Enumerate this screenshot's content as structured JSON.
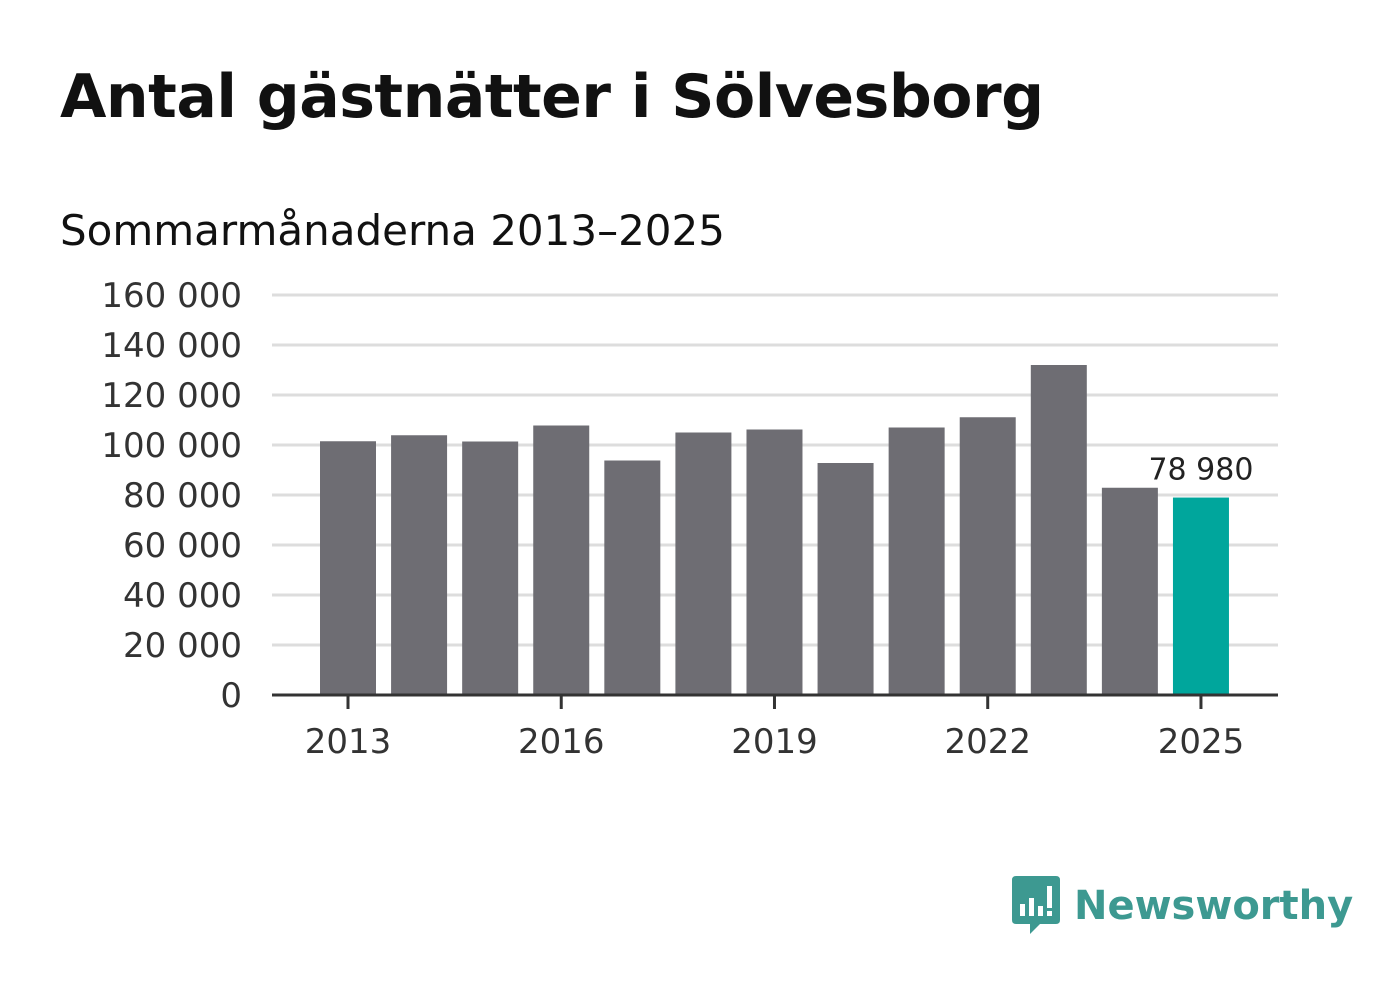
{
  "title": "Antal gästnätter i Sölvesborg",
  "subtitle": "Sommarmånaderna 2013–2025",
  "brand": {
    "name": "Newsworthy",
    "color": "#3d9991",
    "icon": "newsworthy-logo-icon"
  },
  "colors": {
    "bar": "#6e6d73",
    "highlight": "#00a69c",
    "grid": "#dddddd",
    "axis": "#333333"
  },
  "chart_data": {
    "type": "bar",
    "categories": [
      "2013",
      "2014",
      "2015",
      "2016",
      "2017",
      "2018",
      "2019",
      "2020",
      "2021",
      "2022",
      "2023",
      "2024",
      "2025"
    ],
    "values": [
      101500,
      103900,
      101400,
      107800,
      93800,
      105000,
      106200,
      92800,
      107000,
      111100,
      132000,
      82900,
      78980
    ],
    "highlight_index": 12,
    "data_labels": [
      {
        "index": 12,
        "text": "78 980"
      }
    ],
    "x_tick_labels": [
      "2013",
      "2016",
      "2019",
      "2022",
      "2025"
    ],
    "y_ticks": [
      {
        "value": 0,
        "label": "0"
      },
      {
        "value": 20000,
        "label": "20 000"
      },
      {
        "value": 40000,
        "label": "40 000"
      },
      {
        "value": 60000,
        "label": "60 000"
      },
      {
        "value": 80000,
        "label": "80 000"
      },
      {
        "value": 100000,
        "label": "100 000"
      },
      {
        "value": 120000,
        "label": "120 000"
      },
      {
        "value": 140000,
        "label": "140 000"
      },
      {
        "value": 160000,
        "label": "160 000"
      }
    ],
    "ylim": [
      0,
      160000
    ],
    "grid": true,
    "legend": "none"
  }
}
